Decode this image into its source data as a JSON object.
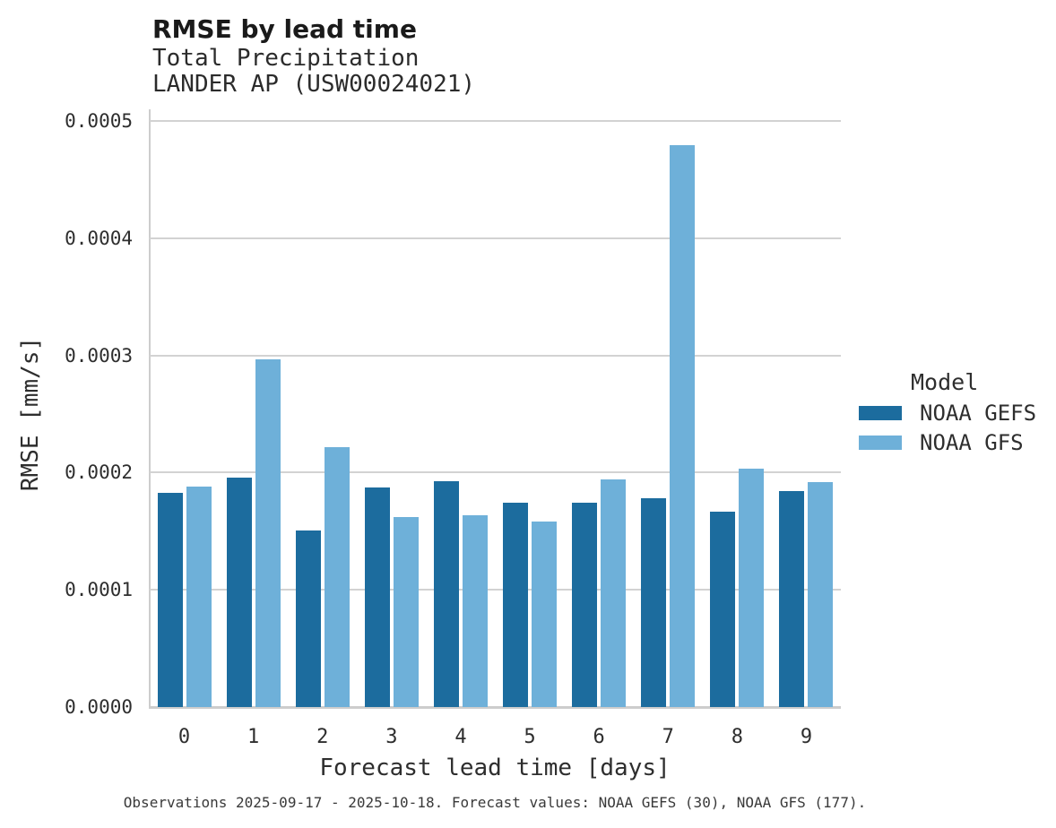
{
  "header": {
    "title": "RMSE by lead time",
    "subtitle_line1": "Total Precipitation",
    "subtitle_line2": "LANDER AP (USW00024021)"
  },
  "footer": {
    "note": "Observations 2025-09-17 - 2025-10-18. Forecast values: NOAA GEFS (30), NOAA GFS (177)."
  },
  "legend": {
    "title": "Model",
    "items": [
      {
        "label": "NOAA GEFS",
        "color": "#1c6c9e"
      },
      {
        "label": "NOAA GFS",
        "color": "#6eb0d9"
      }
    ]
  },
  "colors": {
    "gefs_bar": "#1c6c9e",
    "gfs_bar": "#6eb0d9",
    "gridline": "#d2d2d2",
    "spine": "#cdcdcd"
  },
  "chart_data": {
    "type": "bar",
    "title": "RMSE by lead time",
    "subtitle": [
      "Total Precipitation",
      "LANDER AP (USW00024021)"
    ],
    "xlabel": "Forecast lead time [days]",
    "ylabel": "RMSE [mm/s]",
    "categories": [
      "0",
      "1",
      "2",
      "3",
      "4",
      "5",
      "6",
      "7",
      "8",
      "9"
    ],
    "series": [
      {
        "name": "NOAA GEFS",
        "color": "#1c6c9e",
        "values": [
          0.000183,
          0.000196,
          0.000151,
          0.000187,
          0.000193,
          0.000174,
          0.000174,
          0.000178,
          0.000167,
          0.000184
        ]
      },
      {
        "name": "NOAA GFS",
        "color": "#6eb0d9",
        "values": [
          0.000188,
          0.000297,
          0.000222,
          0.000162,
          0.000164,
          0.000158,
          0.000194,
          0.000479,
          0.000203,
          0.000192
        ]
      }
    ],
    "ylim": [
      0,
      0.0005
    ],
    "yticks": [
      "0.0000",
      "0.0001",
      "0.0002",
      "0.0003",
      "0.0004",
      "0.0005"
    ],
    "grid": true,
    "legend_title": "Model",
    "legend_position": "right"
  }
}
